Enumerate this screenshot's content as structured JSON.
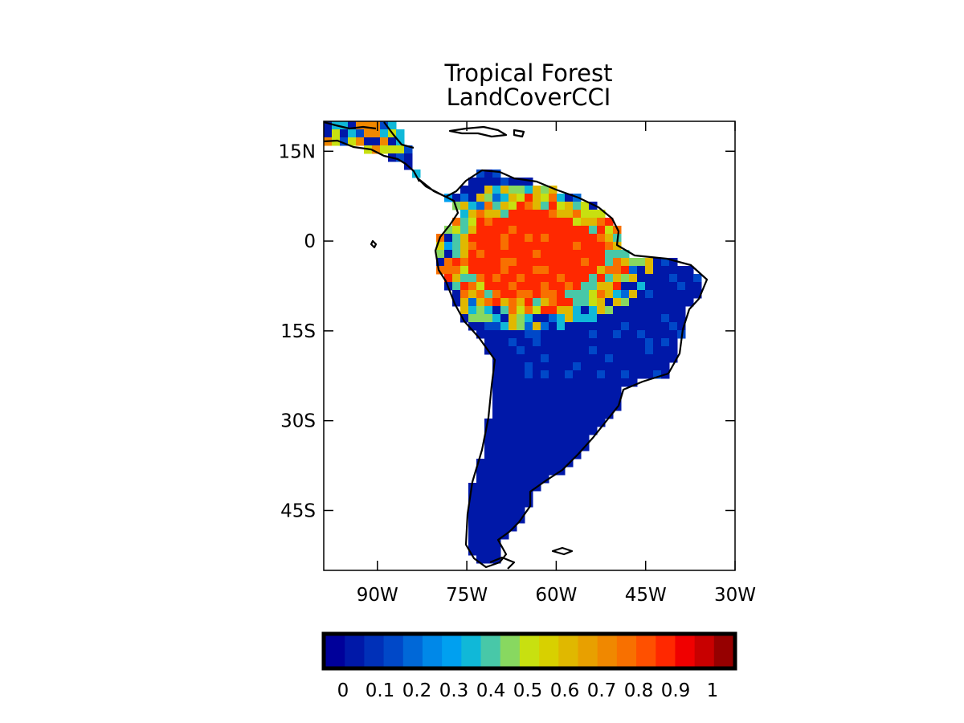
{
  "title": "Tropical Forest",
  "subtitle": "LandCoverCCI",
  "map": {
    "lon_range": [
      -99,
      -30
    ],
    "lat_range": [
      -55,
      20
    ],
    "lon_ticks": [
      {
        "value": -90,
        "label": "90W"
      },
      {
        "value": -75,
        "label": "75W"
      },
      {
        "value": -60,
        "label": "60W"
      },
      {
        "value": -45,
        "label": "45W"
      },
      {
        "value": -30,
        "label": "30W"
      }
    ],
    "lat_ticks": [
      {
        "value": 15,
        "label": "15N"
      },
      {
        "value": 0,
        "label": "0"
      },
      {
        "value": -15,
        "label": "15S"
      },
      {
        "value": -30,
        "label": "30S"
      },
      {
        "value": -45,
        "label": "45S"
      }
    ]
  },
  "colorbar": {
    "colors": [
      "#00009a",
      "#0018a8",
      "#0030b8",
      "#0048c8",
      "#0068d8",
      "#0088e8",
      "#00a0f0",
      "#10b8d8",
      "#48c8a8",
      "#88d860",
      "#c8e010",
      "#d8d000",
      "#e0b800",
      "#e8a000",
      "#f08800",
      "#f87000",
      "#ff5000",
      "#ff2800",
      "#f00000",
      "#c80000",
      "#960000"
    ],
    "tick_labels": [
      "0",
      "0.1",
      "0.2",
      "0.3",
      "0.4",
      "0.5",
      "0.6",
      "0.7",
      "0.8",
      "0.9",
      "1"
    ]
  }
}
